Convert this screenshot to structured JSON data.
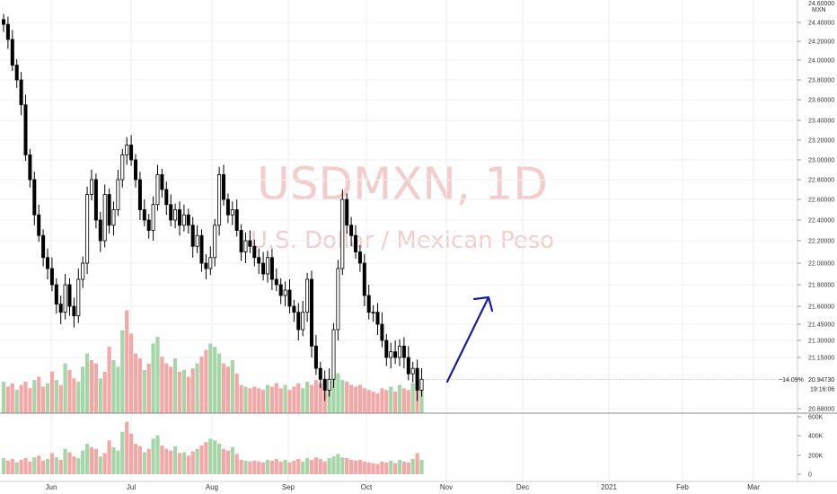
{
  "chart_data": {
    "type": "candlestick",
    "watermark": {
      "symbol": "USDMXN, 1D",
      "description": "U.S. Dollar / Mexican Peso"
    },
    "price_axis": {
      "currency": "MXN",
      "ticks": [
        "24.40000",
        "24.20000",
        "24.00000",
        "23.80000",
        "23.60000",
        "23.40000",
        "23.20000",
        "23.00000",
        "22.80000",
        "22.60000",
        "22.40000",
        "22.20000",
        "22.00000",
        "21.80000",
        "21.60000",
        "21.45000",
        "21.30000",
        "21.15000",
        "20.68000"
      ],
      "top_label": "24.60000"
    },
    "volume_axis": {
      "ticks": [
        "600K",
        "400K",
        "200K",
        "0"
      ]
    },
    "x_axis": {
      "labels": [
        "Jun",
        "Jul",
        "Aug",
        "Sep",
        "Oct",
        "Nov",
        "Dec",
        "2021",
        "Feb",
        "Mar"
      ]
    },
    "last_price": {
      "change": "−14.09%",
      "price": "20.94730",
      "countdown": "19:16:06"
    },
    "closes": [
      24.38,
      24.22,
      23.95,
      23.8,
      23.55,
      23.05,
      22.8,
      22.45,
      22.25,
      22.05,
      21.95,
      21.8,
      21.62,
      21.55,
      21.8,
      21.6,
      21.52,
      21.85,
      22.0,
      22.65,
      22.8,
      22.4,
      22.2,
      22.65,
      22.35,
      22.5,
      22.8,
      23.05,
      23.15,
      23.0,
      22.8,
      22.5,
      22.4,
      22.3,
      22.55,
      22.85,
      22.7,
      22.55,
      22.4,
      22.5,
      22.35,
      22.45,
      22.35,
      22.15,
      22.25,
      22.0,
      21.95,
      22.05,
      22.35,
      22.85,
      22.6,
      22.45,
      22.5,
      22.3,
      22.1,
      22.2,
      22.15,
      22.05,
      22.0,
      21.9,
      22.05,
      21.85,
      21.8,
      21.7,
      21.75,
      21.6,
      21.55,
      21.4,
      21.55,
      21.85,
      21.25,
      21.05,
      20.95,
      20.85,
      20.95,
      21.4,
      21.95,
      22.6,
      22.35,
      22.25,
      22.1,
      22.0,
      21.7,
      21.55,
      21.55,
      21.45,
      21.3,
      21.15,
      21.2,
      21.15,
      21.25,
      21.15,
      21.0,
      21.05,
      20.85,
      20.95
    ],
    "volumes": [
      190000,
      160000,
      180000,
      140000,
      170000,
      190000,
      150000,
      200000,
      220000,
      160000,
      180000,
      250000,
      200000,
      170000,
      300000,
      260000,
      210000,
      190000,
      280000,
      360000,
      320000,
      300000,
      210000,
      250000,
      400000,
      320000,
      280000,
      500000,
      620000,
      480000,
      360000,
      330000,
      260000,
      300000,
      420000,
      460000,
      340000,
      300000,
      280000,
      330000,
      250000,
      260000,
      220000,
      270000,
      300000,
      340000,
      380000,
      420000,
      400000,
      360000,
      300000,
      280000,
      320000,
      240000,
      170000,
      160000,
      150000,
      160000,
      150000,
      140000,
      170000,
      160000,
      180000,
      150000,
      170000,
      140000,
      160000,
      180000,
      150000,
      190000,
      170000,
      200000,
      180000,
      150000,
      190000,
      210000,
      240000,
      200000,
      190000,
      170000,
      160000,
      170000,
      150000,
      140000,
      130000,
      120000,
      150000,
      140000,
      160000,
      130000,
      170000,
      150000,
      140000,
      180000,
      250000,
      170000
    ],
    "volume_up_flags": [
      1,
      0,
      0,
      1,
      0,
      0,
      0,
      1,
      0,
      0,
      1,
      0,
      1,
      0,
      1,
      0,
      0,
      1,
      1,
      1,
      0,
      0,
      1,
      0,
      0,
      1,
      1,
      1,
      0,
      0,
      0,
      0,
      1,
      0,
      1,
      1,
      0,
      0,
      0,
      1,
      0,
      1,
      0,
      0,
      1,
      0,
      0,
      1,
      1,
      1,
      0,
      0,
      1,
      0,
      0,
      1,
      0,
      0,
      0,
      0,
      1,
      0,
      0,
      0,
      1,
      0,
      0,
      0,
      1,
      1,
      0,
      0,
      0,
      0,
      1,
      1,
      1,
      1,
      0,
      0,
      0,
      0,
      0,
      0,
      0,
      0,
      0,
      0,
      1,
      0,
      1,
      0,
      0,
      1,
      0,
      1
    ],
    "colors": {
      "up_volume": "#a5d6a7",
      "down_volume": "#f4a7a7",
      "candle": "#000000",
      "arrow": "#1a1aa8"
    },
    "annotation": {
      "type": "arrow",
      "direction": "up"
    }
  }
}
